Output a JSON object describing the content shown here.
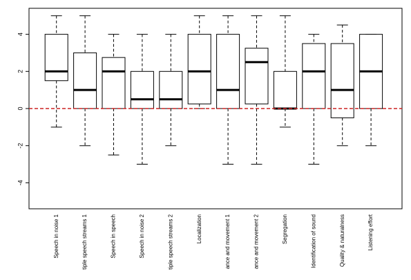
{
  "chart_data": {
    "type": "boxplot",
    "categories": [
      "Speech in noise 1",
      "tiple speech streams 1",
      "Speech in speech",
      "Speech in noise 2",
      "tiple speech streams 2",
      "Localization",
      "ance and movement 1",
      "ance and movement 2",
      "Segregation",
      "Identification of sound",
      "Quality & naturalness",
      "Listening effort"
    ],
    "boxes": [
      {
        "min": -1,
        "q1": 1.5,
        "median": 2,
        "q3": 4,
        "max": 5
      },
      {
        "min": -2,
        "q1": 0,
        "median": 1,
        "q3": 3,
        "max": 5
      },
      {
        "min": -2.5,
        "q1": 0,
        "median": 2,
        "q3": 2.75,
        "max": 4
      },
      {
        "min": -3,
        "q1": 0,
        "median": 0.5,
        "q3": 2,
        "max": 4
      },
      {
        "min": -2,
        "q1": 0,
        "median": 0.5,
        "q3": 2,
        "max": 4
      },
      {
        "min": 0,
        "q1": 0.25,
        "median": 2,
        "q3": 4,
        "max": 5
      },
      {
        "min": -3,
        "q1": 0,
        "median": 1,
        "q3": 4,
        "max": 5
      },
      {
        "min": -3,
        "q1": 0.25,
        "median": 2.5,
        "q3": 3.25,
        "max": 5
      },
      {
        "min": -1,
        "q1": 0,
        "median": 0,
        "q3": 2,
        "max": 5
      },
      {
        "min": -3,
        "q1": 0,
        "median": 2,
        "q3": 3.5,
        "max": 4
      },
      {
        "min": -2,
        "q1": -0.5,
        "median": 1,
        "q3": 3.5,
        "max": 4.5
      },
      {
        "min": -2,
        "q1": 0,
        "median": 2,
        "q3": 4,
        "max": 4
      }
    ],
    "yticks": [
      -4,
      -2,
      0,
      2,
      4
    ],
    "ylim": [
      -5.4,
      5.4
    ],
    "reference_line": {
      "y": 0,
      "color": "#cc2222",
      "style": "dashed"
    },
    "title": "",
    "xlabel": "",
    "ylabel": "",
    "grid": false
  },
  "colors": {
    "box": "#000000",
    "median": "#000000",
    "reference": "#cc2222",
    "background": "#ffffff"
  }
}
